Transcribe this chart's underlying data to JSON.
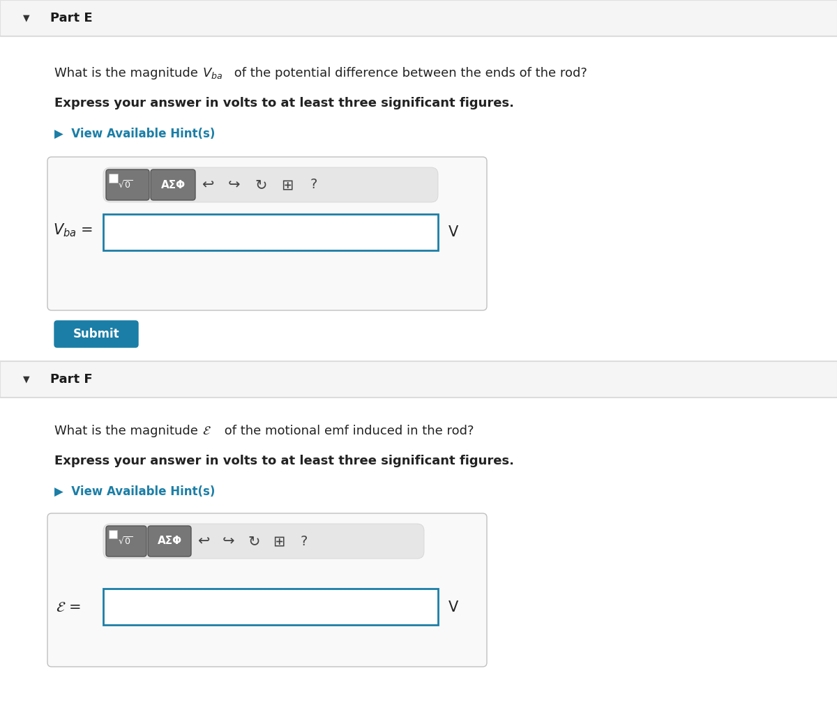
{
  "bg_color": "#ffffff",
  "header_bg": "#f5f5f5",
  "part_e_label": "Part E",
  "part_f_label": "Part F",
  "part_e_question_plain": "What is the magnitude ",
  "part_e_question_math": "$V_{ba}$",
  "part_e_question_rest": " of the potential difference between the ends of the rod?",
  "part_f_question_plain": "What is the magnitude ",
  "part_f_question_math": "$\\mathcal{E}$",
  "part_f_question_rest": " of the motional emf induced in the rod?",
  "bold_instruction": "Express your answer in volts to at least three significant figures.",
  "hint_text": "View Available Hint(s)",
  "hint_color": "#1b7ea6",
  "submit_bg": "#1b7ea6",
  "submit_text": "Submit",
  "submit_text_color": "#ffffff",
  "input_border_color": "#1b7ea6",
  "toolbar_pill_bg": "#e0e0e0",
  "btn_bg": "#777777",
  "unit": "V",
  "label_e": "$V_{ba}$ =",
  "label_f": "$\\mathcal{E}$ ="
}
